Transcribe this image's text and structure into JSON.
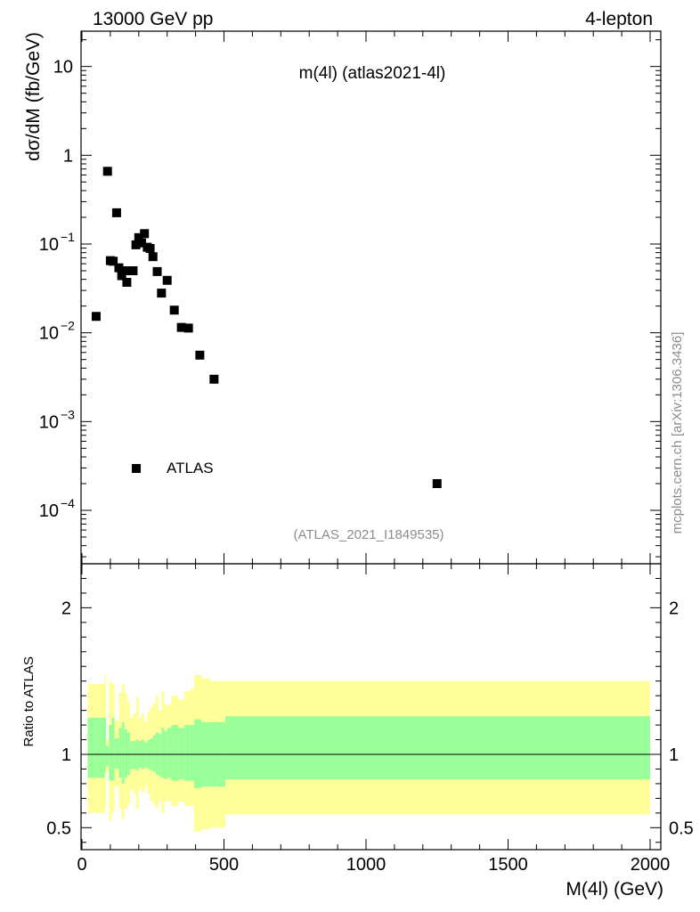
{
  "header": {
    "left": "13000 GeV pp",
    "right": "4-lepton"
  },
  "side_label": "mcplots.cern.ch [arXiv:1306.3436]",
  "chart_data": [
    {
      "type": "scatter",
      "title": "m(4l) (atlas2021-4l)",
      "footnote": "(ATLAS_2021_I1849535)",
      "xlabel": "M(4l) (GeV)",
      "ylabel": "dσ/dM (fb/GeV)",
      "xlim": [
        0,
        2000
      ],
      "ylim": [
        2.5e-05,
        25
      ],
      "y_scale": "log",
      "ytick_labels": {
        "1": "10",
        "0": "1",
        "-1": "10",
        "-2": "10",
        "-3": "10",
        "-4": "10"
      },
      "ytick_exponents": {
        "-1": "−1",
        "-2": "−2",
        "-3": "−3",
        "-4": "−4"
      },
      "legend": {
        "position": "bottom-left",
        "entries": [
          {
            "label": "ATLAS",
            "marker": "square",
            "color": "#000000"
          }
        ]
      },
      "series": [
        {
          "name": "ATLAS",
          "color": "#000000",
          "points": [
            [
              50,
              0.0153
            ],
            [
              90,
              0.66
            ],
            [
              100,
              0.065
            ],
            [
              110,
              0.064
            ],
            [
              122,
              0.225
            ],
            [
              130,
              0.054
            ],
            [
              140,
              0.044
            ],
            [
              150,
              0.05
            ],
            [
              158,
              0.037
            ],
            [
              170,
              0.05
            ],
            [
              180,
              0.05
            ],
            [
              190,
              0.098
            ],
            [
              200,
              0.118
            ],
            [
              210,
              0.103
            ],
            [
              220,
              0.131
            ],
            [
              230,
              0.092
            ],
            [
              240,
              0.089
            ],
            [
              250,
              0.072
            ],
            [
              265,
              0.049
            ],
            [
              280,
              0.028
            ],
            [
              300,
              0.039
            ],
            [
              325,
              0.018
            ],
            [
              350,
              0.0115
            ],
            [
              375,
              0.0113
            ],
            [
              415,
              0.0056
            ],
            [
              465,
              0.003
            ],
            [
              1250,
              0.0002
            ]
          ]
        }
      ]
    },
    {
      "type": "area",
      "xlabel": "M(4l) (GeV)",
      "ylabel": "Ratio to ATLAS",
      "xlim": [
        0,
        2000
      ],
      "ylim": [
        0.35,
        2.3
      ],
      "yticks": [
        0.5,
        1,
        2
      ],
      "ytick_labels": [
        "0.5",
        "1",
        "2"
      ],
      "xticks": [
        0,
        500,
        1000,
        1500,
        2000
      ],
      "xtick_labels": [
        "0",
        "500",
        "1000",
        "1500",
        "2000"
      ],
      "reference_line": 1,
      "bins": [
        {
          "x0": 20,
          "x1": 80,
          "inner": [
            0.84,
            1.25
          ],
          "outer": [
            0.6,
            1.48
          ]
        },
        {
          "x0": 80,
          "x1": 85,
          "inner": [
            0.88,
            1.25
          ],
          "outer": [
            0.63,
            1.55
          ]
        },
        {
          "x0": 85,
          "x1": 95,
          "inner": [
            0.92,
            1.06
          ],
          "outer": [
            0.88,
            1.1
          ]
        },
        {
          "x0": 95,
          "x1": 105,
          "inner": [
            0.82,
            1.2
          ],
          "outer": [
            0.55,
            1.5
          ]
        },
        {
          "x0": 105,
          "x1": 115,
          "inner": [
            0.82,
            1.25
          ],
          "outer": [
            0.6,
            1.48
          ]
        },
        {
          "x0": 115,
          "x1": 130,
          "inner": [
            0.9,
            1.11
          ],
          "outer": [
            0.78,
            1.23
          ]
        },
        {
          "x0": 130,
          "x1": 140,
          "inner": [
            0.84,
            1.18
          ],
          "outer": [
            0.63,
            1.42
          ]
        },
        {
          "x0": 140,
          "x1": 150,
          "inner": [
            0.8,
            1.22
          ],
          "outer": [
            0.56,
            1.48
          ]
        },
        {
          "x0": 150,
          "x1": 160,
          "inner": [
            0.84,
            1.17
          ],
          "outer": [
            0.63,
            1.42
          ]
        },
        {
          "x0": 160,
          "x1": 170,
          "inner": [
            0.86,
            1.15
          ],
          "outer": [
            0.66,
            1.36
          ]
        },
        {
          "x0": 170,
          "x1": 180,
          "inner": [
            0.9,
            1.09
          ],
          "outer": [
            0.76,
            1.25
          ]
        },
        {
          "x0": 180,
          "x1": 190,
          "inner": [
            0.9,
            1.09
          ],
          "outer": [
            0.73,
            1.28
          ]
        },
        {
          "x0": 190,
          "x1": 200,
          "inner": [
            0.89,
            1.1
          ],
          "outer": [
            0.63,
            1.39
          ]
        },
        {
          "x0": 200,
          "x1": 210,
          "inner": [
            0.91,
            1.09
          ],
          "outer": [
            0.77,
            1.25
          ]
        },
        {
          "x0": 210,
          "x1": 220,
          "inner": [
            0.9,
            1.1
          ],
          "outer": [
            0.74,
            1.28
          ]
        },
        {
          "x0": 220,
          "x1": 230,
          "inner": [
            0.91,
            1.08
          ],
          "outer": [
            0.78,
            1.22
          ]
        },
        {
          "x0": 230,
          "x1": 240,
          "inner": [
            0.9,
            1.1
          ],
          "outer": [
            0.73,
            1.29
          ]
        },
        {
          "x0": 240,
          "x1": 250,
          "inner": [
            0.89,
            1.11
          ],
          "outer": [
            0.68,
            1.32
          ]
        },
        {
          "x0": 250,
          "x1": 260,
          "inner": [
            0.88,
            1.13
          ],
          "outer": [
            0.66,
            1.35
          ]
        },
        {
          "x0": 260,
          "x1": 270,
          "inner": [
            0.86,
            1.15
          ],
          "outer": [
            0.63,
            1.4
          ]
        },
        {
          "x0": 270,
          "x1": 280,
          "inner": [
            0.85,
            1.14
          ],
          "outer": [
            0.68,
            1.3
          ]
        },
        {
          "x0": 280,
          "x1": 290,
          "inner": [
            0.84,
            1.18
          ],
          "outer": [
            0.6,
            1.43
          ]
        },
        {
          "x0": 290,
          "x1": 300,
          "inner": [
            0.83,
            1.16
          ],
          "outer": [
            0.68,
            1.34
          ]
        },
        {
          "x0": 300,
          "x1": 315,
          "inner": [
            0.84,
            1.18
          ],
          "outer": [
            0.68,
            1.34
          ]
        },
        {
          "x0": 315,
          "x1": 340,
          "inner": [
            0.82,
            1.2
          ],
          "outer": [
            0.65,
            1.4
          ]
        },
        {
          "x0": 340,
          "x1": 360,
          "inner": [
            0.83,
            1.18
          ],
          "outer": [
            0.68,
            1.37
          ]
        },
        {
          "x0": 360,
          "x1": 380,
          "inner": [
            0.82,
            1.2
          ],
          "outer": [
            0.65,
            1.43
          ]
        },
        {
          "x0": 380,
          "x1": 395,
          "inner": [
            0.82,
            1.2
          ],
          "outer": [
            0.65,
            1.45
          ]
        },
        {
          "x0": 395,
          "x1": 420,
          "inner": [
            0.77,
            1.24
          ],
          "outer": [
            0.47,
            1.54
          ]
        },
        {
          "x0": 420,
          "x1": 450,
          "inner": [
            0.78,
            1.22
          ],
          "outer": [
            0.49,
            1.52
          ]
        },
        {
          "x0": 450,
          "x1": 505,
          "inner": [
            0.78,
            1.22
          ],
          "outer": [
            0.5,
            1.5
          ]
        },
        {
          "x0": 505,
          "x1": 2000,
          "inner": [
            0.83,
            1.26
          ],
          "outer": [
            0.59,
            1.5
          ]
        }
      ],
      "inner_color": "#99ff99",
      "outer_color": "#ffff99"
    }
  ]
}
